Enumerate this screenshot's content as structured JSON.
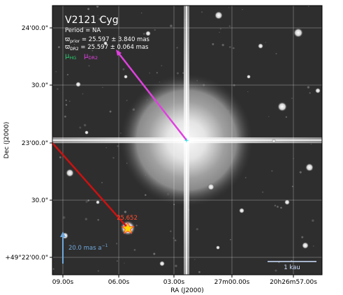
{
  "figure": {
    "title": "V2121 Cyg",
    "period": "Period = NA",
    "parallax_prior_symbol": "ϖ",
    "parallax_prior_sub": "prior",
    "parallax_prior_value": " = 25.597 ± 3.840 mas",
    "parallax_dr2_symbol": "ϖ",
    "parallax_dr2_sub": "DR2",
    "parallax_dr2_value": " = 25.597 ± 0.064 mas",
    "mu_hg_symbol": "μ",
    "mu_hg_sub": "HG",
    "mu_dr2_symbol": "μ",
    "mu_dr2_sub": "DR2",
    "companion_label": "25.652",
    "scale_arrow_label": "20.0 mas a",
    "scale_arrow_exp": "−1",
    "scale_bar_label": "1 kau",
    "xlabel": "RA (J2000)",
    "ylabel": "Dec (J2000)",
    "xticks": [
      "09.00s",
      "06.00s",
      "03.00s",
      "27m00.00s",
      "20h26m57.00s"
    ],
    "yticks": [
      "24'00.0\"",
      "30.0\"",
      "23'00.0\"",
      "30.0\"",
      "+49°22'00.0\""
    ]
  },
  "colors": {
    "mu_hg": "#2ecc71",
    "mu_dr2": "#e040e0",
    "hg_arrow": "#cc1111",
    "dr2_arrow": "#e040e0",
    "scale_arrow": "#6fa8dc",
    "companion_label": "#ff4d2e",
    "star_marker": "#ffd700"
  }
}
